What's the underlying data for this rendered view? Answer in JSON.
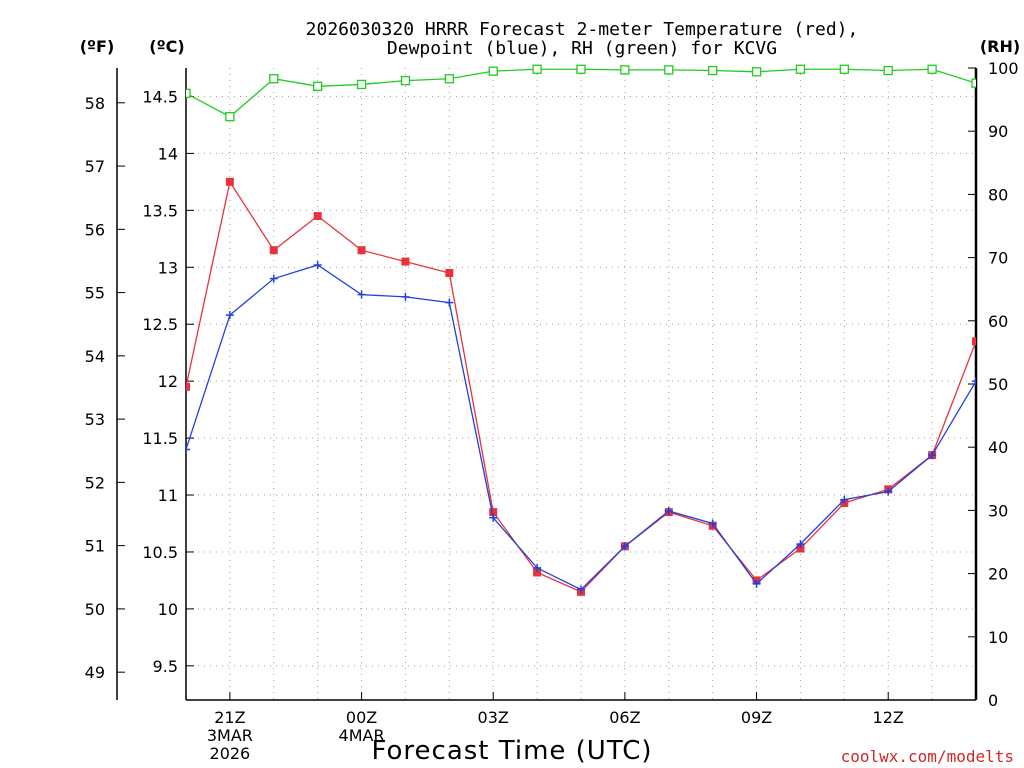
{
  "chart_data": {
    "type": "line",
    "title_line1": "2026030320 HRRR Forecast 2-meter Temperature (red),",
    "title_line2": "Dewpoint (blue), RH (green) for KCVG",
    "xlabel": "Forecast Time (UTC)",
    "credit": "coolwx.com/modelts",
    "unit_f": "(ºF)",
    "unit_c": "(ºC)",
    "unit_rh": "(RH)",
    "x_hours": [
      0,
      1,
      2,
      3,
      4,
      5,
      6,
      7,
      8,
      9,
      10,
      11,
      12,
      13,
      14,
      15,
      16,
      17,
      18
    ],
    "xlim": [
      0,
      18
    ],
    "x_ticks": [
      {
        "hour": 1,
        "label": "21Z",
        "sub1": "3MAR",
        "sub2": "2026"
      },
      {
        "hour": 4,
        "label": "00Z",
        "sub1": "4MAR",
        "sub2": ""
      },
      {
        "hour": 7,
        "label": "03Z",
        "sub1": "",
        "sub2": ""
      },
      {
        "hour": 10,
        "label": "06Z",
        "sub1": "",
        "sub2": ""
      },
      {
        "hour": 13,
        "label": "09Z",
        "sub1": "",
        "sub2": ""
      },
      {
        "hour": 16,
        "label": "12Z",
        "sub1": "",
        "sub2": ""
      }
    ],
    "ylim_c": [
      9.2,
      14.75
    ],
    "c_ticks": [
      "9.5",
      "10",
      "10.5",
      "11",
      "11.5",
      "12",
      "12.5",
      "13",
      "13.5",
      "14",
      "14.5"
    ],
    "f_ticks": [
      "49",
      "50",
      "51",
      "52",
      "53",
      "54",
      "55",
      "56",
      "57",
      "58"
    ],
    "rh_ticks": [
      "0",
      "10",
      "20",
      "30",
      "40",
      "50",
      "60",
      "70",
      "80",
      "90",
      "100"
    ],
    "ylim_rh": [
      0,
      100
    ],
    "series": [
      {
        "name": "Temperature",
        "color": "#e8323c",
        "marker": "filled-square",
        "values": [
          11.95,
          13.75,
          13.15,
          13.45,
          13.15,
          13.05,
          12.95,
          10.85,
          10.32,
          10.15,
          10.55,
          10.85,
          10.73,
          10.25,
          10.53,
          10.93,
          11.05,
          11.35,
          12.35
        ]
      },
      {
        "name": "Dewpoint",
        "color": "#2040e0",
        "marker": "plus",
        "values": [
          11.4,
          12.58,
          12.9,
          13.02,
          12.76,
          12.74,
          12.69,
          10.8,
          10.36,
          10.17,
          10.55,
          10.86,
          10.75,
          10.22,
          10.57,
          10.96,
          11.03,
          11.35,
          12.0
        ]
      },
      {
        "name": "RH",
        "color": "#20cc20",
        "marker": "open-square",
        "values": [
          96,
          92.3,
          98.3,
          97.1,
          97.4,
          98.0,
          98.3,
          99.5,
          99.8,
          99.8,
          99.7,
          99.7,
          99.6,
          99.4,
          99.8,
          99.8,
          99.6,
          99.8,
          97.6
        ]
      }
    ]
  }
}
